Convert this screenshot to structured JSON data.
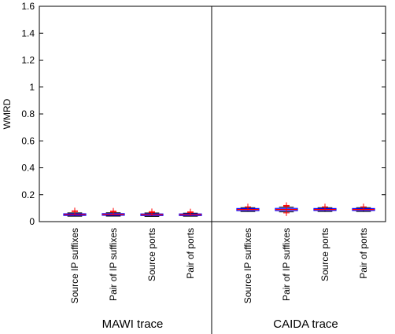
{
  "chart_data": {
    "type": "box",
    "ylabel": "WMRD",
    "ylim": [
      0,
      1.6
    ],
    "yticks": [
      "0",
      "0.2",
      "0.4",
      "0.6",
      "0.8",
      "1",
      "1.2",
      "1.4",
      "1.6"
    ],
    "grid": false,
    "groups": [
      {
        "label": "MAWI trace",
        "categories": [
          {
            "label": "Source IP suffixes",
            "q1": 0.047,
            "median": 0.053,
            "q3": 0.058,
            "whisker_low": 0.04,
            "whisker_high": 0.065,
            "outliers": [
              0.075,
              0.08
            ]
          },
          {
            "label": "Pair of IP suffixes",
            "q1": 0.048,
            "median": 0.054,
            "q3": 0.059,
            "whisker_low": 0.041,
            "whisker_high": 0.066,
            "outliers": [
              0.072,
              0.078
            ]
          },
          {
            "label": "Source ports",
            "q1": 0.046,
            "median": 0.052,
            "q3": 0.057,
            "whisker_low": 0.039,
            "whisker_high": 0.064,
            "outliers": [
              0.068,
              0.074
            ]
          },
          {
            "label": "Pair of ports",
            "q1": 0.046,
            "median": 0.052,
            "q3": 0.057,
            "whisker_low": 0.04,
            "whisker_high": 0.063,
            "outliers": [
              0.068,
              0.072
            ]
          }
        ]
      },
      {
        "label": "CAIDA trace",
        "categories": [
          {
            "label": "Source IP suffixes",
            "q1": 0.082,
            "median": 0.09,
            "q3": 0.097,
            "whisker_low": 0.075,
            "whisker_high": 0.104,
            "outliers": [
              0.11
            ]
          },
          {
            "label": "Pair of IP suffixes",
            "q1": 0.082,
            "median": 0.09,
            "q3": 0.098,
            "whisker_low": 0.072,
            "whisker_high": 0.108,
            "outliers": [
              0.065,
              0.115,
              0.12
            ]
          },
          {
            "label": "Source ports",
            "q1": 0.083,
            "median": 0.09,
            "q3": 0.097,
            "whisker_low": 0.075,
            "whisker_high": 0.104,
            "outliers": [
              0.11
            ]
          },
          {
            "label": "Pair of ports",
            "q1": 0.083,
            "median": 0.09,
            "q3": 0.097,
            "whisker_low": 0.075,
            "whisker_high": 0.104,
            "outliers": [
              0.11
            ]
          }
        ]
      }
    ],
    "colors": {
      "box": "#0000ff",
      "median": "#ff0000",
      "whisker": "#000000",
      "outlier": "#ff0000",
      "axis": "#000000"
    }
  }
}
